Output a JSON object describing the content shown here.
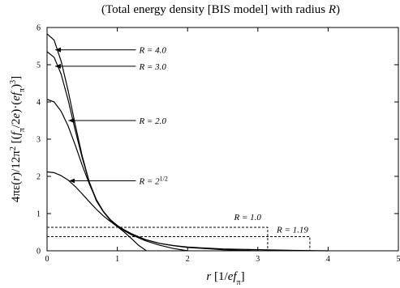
{
  "chart_data": {
    "type": "line",
    "title": "(Total energy density [BIS model] with radius R)",
    "xlabel": "r [1/ef_π]",
    "ylabel": "4πε(r)/12π² [(f_π/2e)·(ef_π)³]",
    "xlim": [
      0,
      5
    ],
    "ylim": [
      0,
      6
    ],
    "x_ticks": [
      0,
      1,
      2,
      3,
      4,
      5
    ],
    "y_ticks": [
      0,
      1,
      2,
      3,
      4,
      5,
      6
    ],
    "grid": false,
    "legend": "none",
    "series": [
      {
        "name": "R = 4.0",
        "x": [
          0,
          0.1,
          0.2,
          0.3,
          0.4,
          0.5,
          0.6,
          0.7,
          0.8,
          0.9,
          1.0,
          1.1,
          1.2,
          1.4,
          1.6,
          1.8,
          2.0,
          2.5,
          3.0,
          3.5,
          4.0
        ],
        "y": [
          5.83,
          5.66,
          5.1,
          4.3,
          3.4,
          2.55,
          1.85,
          1.35,
          1.05,
          0.82,
          0.66,
          0.55,
          0.45,
          0.3,
          0.2,
          0.14,
          0.1,
          0.05,
          0.03,
          0.01,
          0.0
        ]
      },
      {
        "name": "R = 3.0",
        "x": [
          0,
          0.1,
          0.2,
          0.3,
          0.4,
          0.5,
          0.6,
          0.7,
          0.8,
          0.9,
          1.0,
          1.1,
          1.2,
          1.4,
          1.6,
          1.8,
          2.0,
          2.5,
          3.0
        ],
        "y": [
          5.35,
          5.2,
          4.75,
          4.05,
          3.25,
          2.5,
          1.85,
          1.38,
          1.06,
          0.84,
          0.68,
          0.56,
          0.46,
          0.3,
          0.2,
          0.14,
          0.09,
          0.03,
          0.0
        ]
      },
      {
        "name": "R = 2.0",
        "x": [
          0,
          0.1,
          0.2,
          0.3,
          0.4,
          0.5,
          0.6,
          0.7,
          0.8,
          0.9,
          1.0,
          1.1,
          1.2,
          1.4,
          1.6,
          1.8,
          2.0
        ],
        "y": [
          4.07,
          4.0,
          3.75,
          3.35,
          2.85,
          2.3,
          1.8,
          1.38,
          1.06,
          0.83,
          0.67,
          0.54,
          0.43,
          0.27,
          0.15,
          0.06,
          0.0
        ]
      },
      {
        "name": "R = 2^{1/2}",
        "x": [
          0,
          0.1,
          0.2,
          0.3,
          0.4,
          0.5,
          0.6,
          0.7,
          0.8,
          0.9,
          1.0,
          1.1,
          1.2,
          1.3,
          1.414
        ],
        "y": [
          2.12,
          2.1,
          2.02,
          1.9,
          1.73,
          1.53,
          1.32,
          1.12,
          0.94,
          0.79,
          0.65,
          0.5,
          0.33,
          0.15,
          0.0
        ]
      }
    ],
    "annotations": [
      {
        "series": "R = 4.0",
        "text": "R = 4.0"
      },
      {
        "series": "R = 3.0",
        "text": "R = 3.0"
      },
      {
        "series": "R = 2.0",
        "text": "R = 2.0"
      },
      {
        "series": "R = 2^{1/2}",
        "text_main": "R = 2",
        "text_sup": "1/2"
      }
    ],
    "dashed_boxes": [
      {
        "label": "R = 1.0",
        "x_end": 3.14,
        "y_level": 0.63
      },
      {
        "label": "R = 1.19",
        "x_end": 3.74,
        "y_level": 0.38
      }
    ]
  }
}
